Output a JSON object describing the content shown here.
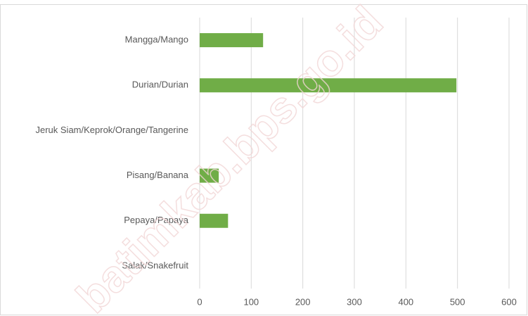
{
  "chart_data": {
    "type": "bar",
    "orientation": "horizontal",
    "categories": [
      "Mangga/Mango",
      "Durian/Durian",
      "Jeruk Siam/Keprok/Orange/Tangerine",
      "Pisang/Banana",
      "Pepaya/Papaya",
      "Salak/Snakefruit"
    ],
    "values": [
      123,
      498,
      0,
      37,
      55,
      0
    ],
    "color": "#70ad47",
    "xlim": [
      0,
      600
    ],
    "xticks": [
      0,
      100,
      200,
      300,
      400,
      500,
      600
    ],
    "grid": true,
    "watermark": "batimkab.bps.go.id"
  }
}
